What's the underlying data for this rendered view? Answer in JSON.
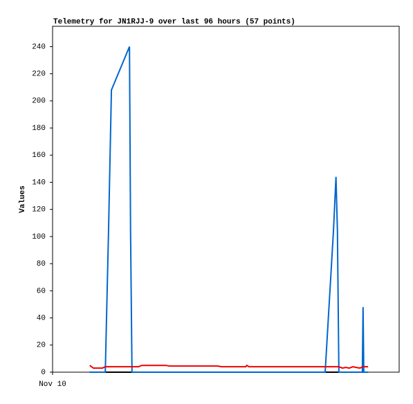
{
  "chart_data": {
    "type": "line",
    "title": "Telemetry for JN1RJJ-9 over last 96 hours (57 points)",
    "y_label": "Values",
    "xlim": [
      0,
      96
    ],
    "xticks": [
      {
        "value": 0,
        "label": "Nov 10"
      }
    ],
    "ylim": [
      0,
      255
    ],
    "yticks": [
      0,
      20,
      40,
      60,
      80,
      100,
      120,
      140,
      160,
      180,
      200,
      220,
      240
    ],
    "series": [
      {
        "color": "#000000",
        "x": [
          10.3,
          87.4
        ],
        "values": [
          0,
          0
        ]
      },
      {
        "color": "#0066cc",
        "x": [
          10.3,
          14.6,
          15.5,
          16.3,
          21.3,
          21.6,
          22.0,
          75.5,
          77.8,
          78.5,
          78.9,
          79.3,
          85.8,
          86.0,
          86.1,
          86.2,
          87.4
        ],
        "values": [
          0,
          0,
          104,
          208,
          240,
          104,
          0,
          0,
          104,
          144,
          104,
          0,
          0,
          48,
          25,
          0,
          0
        ]
      },
      {
        "color": "#ee0000",
        "x": [
          10.3,
          11.3,
          13.8,
          14.6,
          23.8,
          24.7,
          31.4,
          32.4,
          45.8,
          46.8,
          53.5,
          53.8,
          54.4,
          79.3,
          80.3,
          81.2,
          82.2,
          83.2,
          84.1,
          85.1,
          86.0,
          87.4
        ],
        "values": [
          5,
          3,
          3,
          4,
          4,
          5,
          5,
          4.5,
          4.5,
          4,
          4,
          5,
          4,
          4,
          3,
          3.5,
          3,
          4,
          3.5,
          3,
          4,
          4
        ]
      }
    ]
  }
}
